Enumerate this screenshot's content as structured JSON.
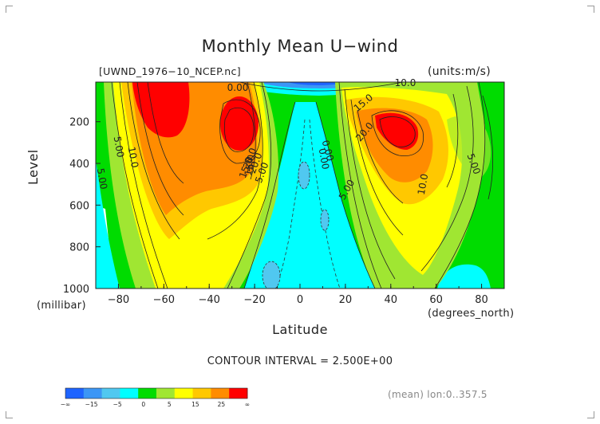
{
  "chart_data": {
    "type": "heatmap",
    "title": "Monthly Mean U−wind",
    "subtitle_left": "[UWND_1976−10_NCEP.nc]",
    "subtitle_right": "(units:m/s)",
    "xlabel": "Latitude",
    "ylabel": "Level",
    "x_unit_label": "(degrees_north)",
    "y_unit_label": "(millibar)",
    "xlim": [
      -90,
      90
    ],
    "ylim": [
      1000,
      10
    ],
    "x_ticks": [
      "−80",
      "−60",
      "−40",
      "−20",
      "0",
      "20",
      "40",
      "60",
      "80"
    ],
    "y_ticks": [
      "200",
      "400",
      "600",
      "800",
      "1000"
    ],
    "contour_labels": [
      "0.00",
      "10.0",
      "15.0",
      "20.0",
      "5.00",
      "10.0",
      "5.00",
      "0.00",
      "20.0",
      "15.0",
      "5.00",
      "0.00",
      "15.0",
      "20.0",
      "5.00",
      "10.0",
      "5.00"
    ],
    "jets": [
      {
        "lat": -58,
        "level": 80,
        "max": 27.5
      },
      {
        "lat": -26,
        "level": 200,
        "max": 25
      },
      {
        "lat": 45,
        "level": 200,
        "max": 25
      }
    ],
    "contour_interval_text": "CONTOUR INTERVAL = 2.500E+00",
    "colorbar": {
      "labels": [
        "−∞",
        "−15",
        "−5",
        "0",
        "5",
        "15",
        "25",
        "∞"
      ],
      "colors": [
        "#1e64ff",
        "#3c96f5",
        "#50c8f0",
        "#00ffff",
        "#00dc00",
        "#a0e632",
        "#ffff00",
        "#ffc800",
        "#ff8c00",
        "#ff0000"
      ]
    },
    "footnote": "(mean) lon:0..357.5"
  }
}
